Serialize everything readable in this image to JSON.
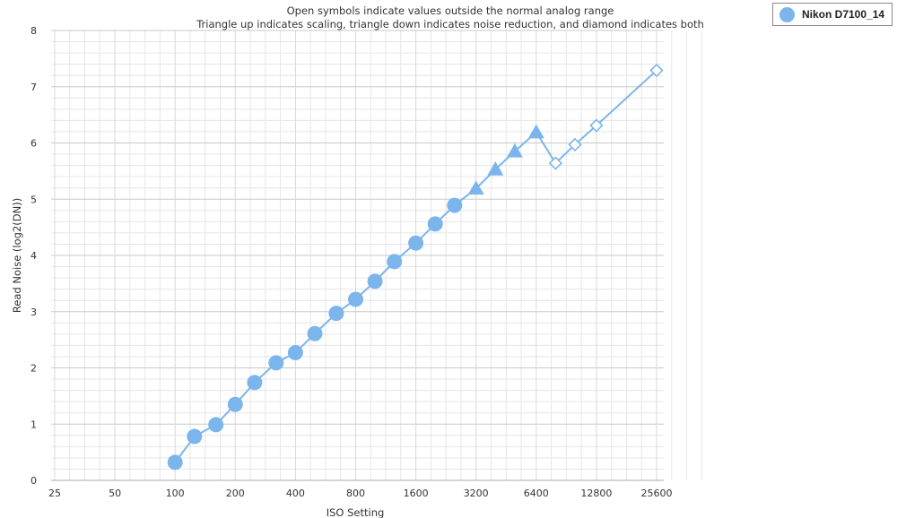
{
  "chart_data": {
    "type": "line",
    "title": "Open symbols indicate values outside the normal analog range",
    "subtitle": "Triangle up indicates scaling, triangle down indicates noise reduction, and diamond indicates both",
    "xlabel": "ISO Setting",
    "ylabel": "Read Noise (log2(DN))",
    "x_scale": "log2",
    "xlim": [
      25,
      25600
    ],
    "ylim": [
      0,
      8
    ],
    "x_ticks": [
      25,
      50,
      100,
      200,
      400,
      800,
      1600,
      3200,
      6400,
      12800,
      25600
    ],
    "y_ticks": [
      0,
      1,
      2,
      3,
      4,
      5,
      6,
      7,
      8
    ],
    "grid": true,
    "legend_position": "top-right",
    "series": [
      {
        "name": "Nikon D7100_14",
        "color": "#7cb5ec",
        "points": [
          {
            "x": 100,
            "y": 0.32,
            "marker": "circle"
          },
          {
            "x": 125,
            "y": 0.78,
            "marker": "circle"
          },
          {
            "x": 160,
            "y": 0.99,
            "marker": "circle"
          },
          {
            "x": 200,
            "y": 1.35,
            "marker": "circle"
          },
          {
            "x": 250,
            "y": 1.74,
            "marker": "circle"
          },
          {
            "x": 320,
            "y": 2.09,
            "marker": "circle"
          },
          {
            "x": 400,
            "y": 2.27,
            "marker": "circle"
          },
          {
            "x": 500,
            "y": 2.61,
            "marker": "circle"
          },
          {
            "x": 640,
            "y": 2.97,
            "marker": "circle"
          },
          {
            "x": 800,
            "y": 3.22,
            "marker": "circle"
          },
          {
            "x": 1000,
            "y": 3.54,
            "marker": "circle"
          },
          {
            "x": 1250,
            "y": 3.89,
            "marker": "circle"
          },
          {
            "x": 1600,
            "y": 4.22,
            "marker": "circle"
          },
          {
            "x": 2000,
            "y": 4.56,
            "marker": "circle"
          },
          {
            "x": 2500,
            "y": 4.89,
            "marker": "circle"
          },
          {
            "x": 3200,
            "y": 5.19,
            "marker": "triangle-up"
          },
          {
            "x": 4000,
            "y": 5.53,
            "marker": "triangle-up"
          },
          {
            "x": 5000,
            "y": 5.85,
            "marker": "triangle-up"
          },
          {
            "x": 6400,
            "y": 6.19,
            "marker": "triangle-up"
          },
          {
            "x": 8000,
            "y": 5.64,
            "marker": "diamond-open"
          },
          {
            "x": 10000,
            "y": 5.97,
            "marker": "diamond-open"
          },
          {
            "x": 12800,
            "y": 6.31,
            "marker": "diamond-open"
          },
          {
            "x": 25600,
            "y": 7.29,
            "marker": "diamond-open"
          }
        ]
      }
    ]
  }
}
